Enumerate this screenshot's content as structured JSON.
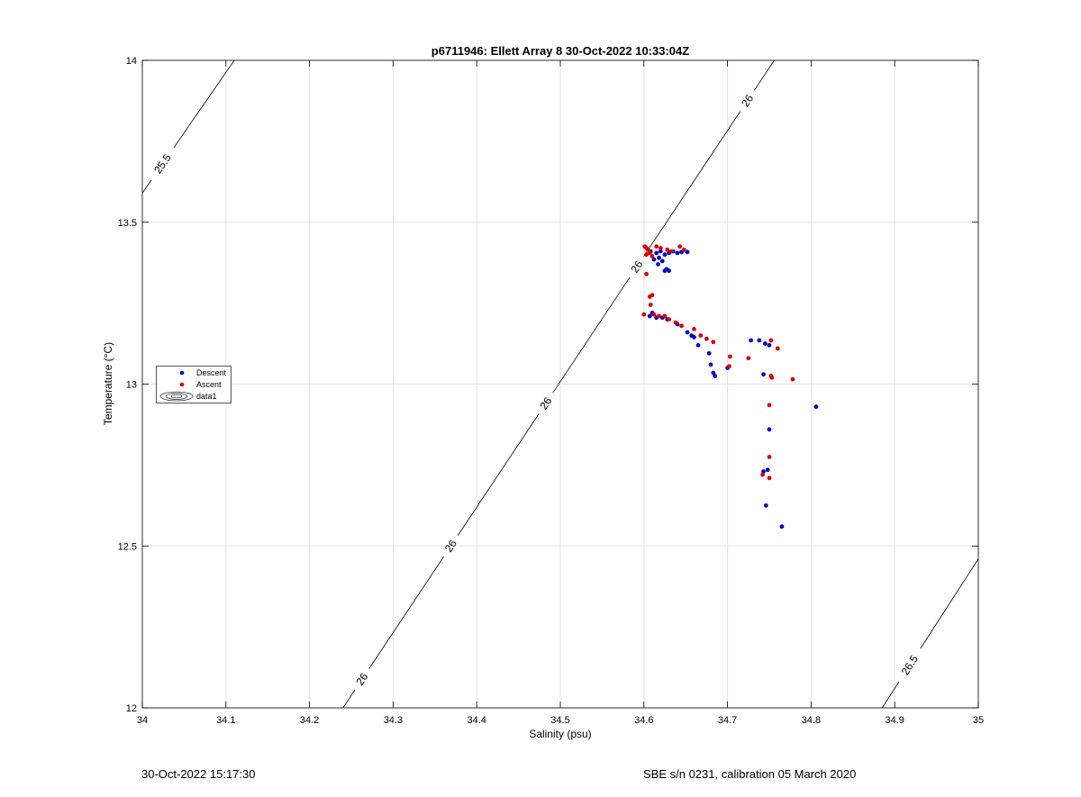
{
  "footer": {
    "left": "30-Oct-2022 15:17:30",
    "right": "SBE s/n 0231, calibration 05 March 2020"
  },
  "chart_data": {
    "type": "scatter",
    "title": "p6711946: Ellett Array 8 30-Oct-2022 10:33:04Z",
    "xlabel": "Salinity (psu)",
    "ylabel": "Temperature (°C)",
    "xlim": [
      34,
      35
    ],
    "ylim": [
      12,
      14
    ],
    "x_ticks": [
      "34",
      "34.1",
      "34.2",
      "34.3",
      "34.4",
      "34.5",
      "34.6",
      "34.7",
      "34.8",
      "34.9",
      "35"
    ],
    "y_ticks": [
      "12",
      "12.5",
      "13",
      "13.5",
      "14"
    ],
    "grid": true,
    "legend": {
      "placement": "left",
      "entries": [
        "Descent",
        "Ascent",
        "data1"
      ]
    },
    "colors": {
      "descent": "#0000cc",
      "ascent": "#dd0000",
      "contour": "#000000"
    },
    "contours": [
      {
        "label": "25.5",
        "from": [
          34.0,
          13.59
        ],
        "to": [
          34.11,
          14.0
        ],
        "label_at": [
          34.03,
          13.67
        ]
      },
      {
        "label": "26",
        "from": [
          34.24,
          12.0
        ],
        "to": [
          34.756,
          14.0
        ],
        "label_at": [
          34.785,
          13.77
        ]
      },
      {
        "label": "26",
        "from": [
          34.24,
          12.0
        ],
        "to": [
          34.756,
          14.0
        ],
        "label_at": [
          34.593,
          13.36
        ]
      },
      {
        "label": "26",
        "from": [
          34.24,
          12.0
        ],
        "to": [
          34.756,
          14.0
        ],
        "label_at": [
          34.483,
          12.94
        ]
      },
      {
        "label": "26",
        "from": [
          34.24,
          12.0
        ],
        "to": [
          34.756,
          14.0
        ],
        "label_at": [
          34.369,
          12.5
        ]
      },
      {
        "label": "26",
        "from": [
          34.24,
          12.0
        ],
        "to": [
          34.756,
          14.0
        ],
        "label_at": [
          34.262,
          12.09
        ]
      },
      {
        "label": "26.5",
        "from": [
          34.885,
          12.0
        ],
        "to": [
          35.0,
          12.46
        ],
        "label_at": [
          34.925,
          12.12
        ]
      }
    ],
    "series": [
      {
        "name": "Descent",
        "points": [
          [
            34.608,
            13.41
          ],
          [
            34.615,
            13.405
          ],
          [
            34.62,
            13.41
          ],
          [
            34.625,
            13.4
          ],
          [
            34.63,
            13.405
          ],
          [
            34.635,
            13.41
          ],
          [
            34.64,
            13.405
          ],
          [
            34.645,
            13.408
          ],
          [
            34.652,
            13.408
          ],
          [
            34.618,
            13.39
          ],
          [
            34.622,
            13.38
          ],
          [
            34.617,
            13.37
          ],
          [
            34.612,
            13.385
          ],
          [
            34.625,
            13.35
          ],
          [
            34.63,
            13.35
          ],
          [
            34.627,
            13.355
          ],
          [
            34.61,
            13.22
          ],
          [
            34.607,
            13.21
          ],
          [
            34.615,
            13.205
          ],
          [
            34.622,
            13.205
          ],
          [
            34.628,
            13.2
          ],
          [
            34.64,
            13.185
          ],
          [
            34.652,
            13.16
          ],
          [
            34.657,
            13.15
          ],
          [
            34.66,
            13.145
          ],
          [
            34.665,
            13.12
          ],
          [
            34.678,
            13.095
          ],
          [
            34.68,
            13.06
          ],
          [
            34.683,
            13.035
          ],
          [
            34.685,
            13.025
          ],
          [
            34.7,
            13.05
          ],
          [
            34.728,
            13.135
          ],
          [
            34.738,
            13.135
          ],
          [
            34.745,
            13.125
          ],
          [
            34.75,
            13.12
          ],
          [
            34.743,
            13.03
          ],
          [
            34.75,
            12.86
          ],
          [
            34.748,
            12.735
          ],
          [
            34.743,
            12.73
          ],
          [
            34.746,
            12.625
          ],
          [
            34.765,
            12.56
          ],
          [
            34.806,
            12.93
          ]
        ]
      },
      {
        "name": "Ascent",
        "points": [
          [
            34.601,
            13.425
          ],
          [
            34.603,
            13.42
          ],
          [
            34.605,
            13.415
          ],
          [
            34.607,
            13.405
          ],
          [
            34.603,
            13.4
          ],
          [
            34.61,
            13.395
          ],
          [
            34.615,
            13.425
          ],
          [
            34.62,
            13.42
          ],
          [
            34.628,
            13.415
          ],
          [
            34.633,
            13.41
          ],
          [
            34.643,
            13.425
          ],
          [
            34.648,
            13.415
          ],
          [
            34.61,
            13.275
          ],
          [
            34.607,
            13.27
          ],
          [
            34.603,
            13.34
          ],
          [
            34.608,
            13.245
          ],
          [
            34.612,
            13.215
          ],
          [
            34.618,
            13.21
          ],
          [
            34.625,
            13.21
          ],
          [
            34.63,
            13.2
          ],
          [
            34.638,
            13.19
          ],
          [
            34.645,
            13.18
          ],
          [
            34.66,
            13.17
          ],
          [
            34.668,
            13.15
          ],
          [
            34.675,
            13.14
          ],
          [
            34.683,
            13.13
          ],
          [
            34.703,
            13.085
          ],
          [
            34.702,
            13.055
          ],
          [
            34.725,
            13.08
          ],
          [
            34.752,
            13.135
          ],
          [
            34.76,
            13.11
          ],
          [
            34.752,
            13.025
          ],
          [
            34.753,
            13.02
          ],
          [
            34.778,
            13.015
          ],
          [
            34.75,
            12.935
          ],
          [
            34.75,
            12.775
          ],
          [
            34.742,
            12.72
          ],
          [
            34.75,
            12.71
          ],
          [
            34.6,
            13.215
          ]
        ]
      }
    ]
  }
}
